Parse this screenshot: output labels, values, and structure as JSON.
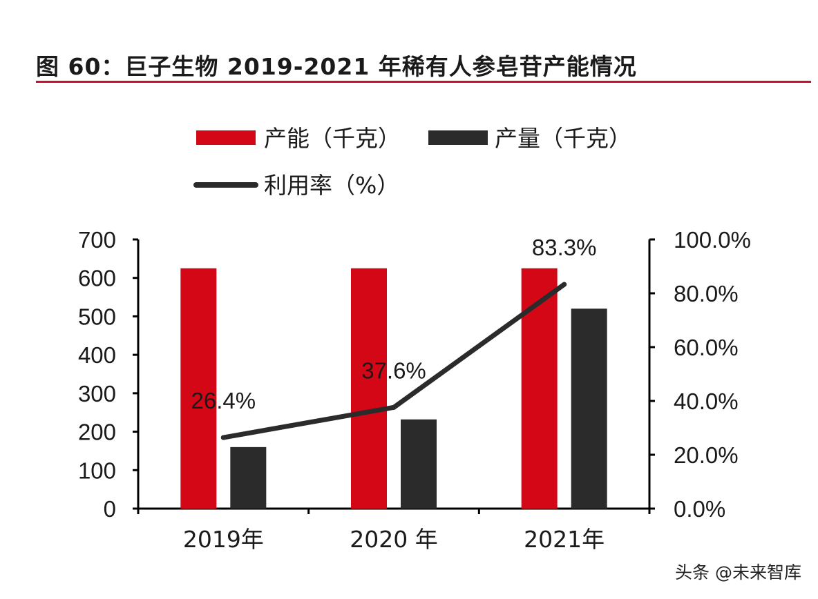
{
  "figure_title": "图 60：巨子生物 2019-2021 年稀有人参皂苷产能情况",
  "watermark": "头条 @未来智库",
  "colors": {
    "capacity": "#d40716",
    "output": "#2b2b2b",
    "utilization": "#2b2b2b",
    "title_rule": "#c8102e"
  },
  "chart_data": {
    "type": "bar",
    "categories": [
      "2019年",
      "2020 年",
      "2021年"
    ],
    "series": [
      {
        "name": "产能（千克）",
        "type": "bar",
        "axis": "left",
        "values": [
          625,
          625,
          625
        ]
      },
      {
        "name": "产量（千克）",
        "type": "bar",
        "axis": "left",
        "values": [
          160,
          232,
          520
        ]
      },
      {
        "name": "利用率（%）",
        "type": "line",
        "axis": "right",
        "values": [
          26.4,
          37.6,
          83.3
        ],
        "labels": [
          "26.4%",
          "37.6%",
          "83.3%"
        ]
      }
    ],
    "y_left": {
      "min": 0,
      "max": 700,
      "ticks": [
        "0",
        "100",
        "200",
        "300",
        "400",
        "500",
        "600",
        "700"
      ]
    },
    "y_right": {
      "min": 0,
      "max": 100,
      "ticks": [
        "0.0%",
        "20.0%",
        "40.0%",
        "60.0%",
        "80.0%",
        "100.0%"
      ]
    },
    "grid": false,
    "legend_position": "top-left"
  }
}
